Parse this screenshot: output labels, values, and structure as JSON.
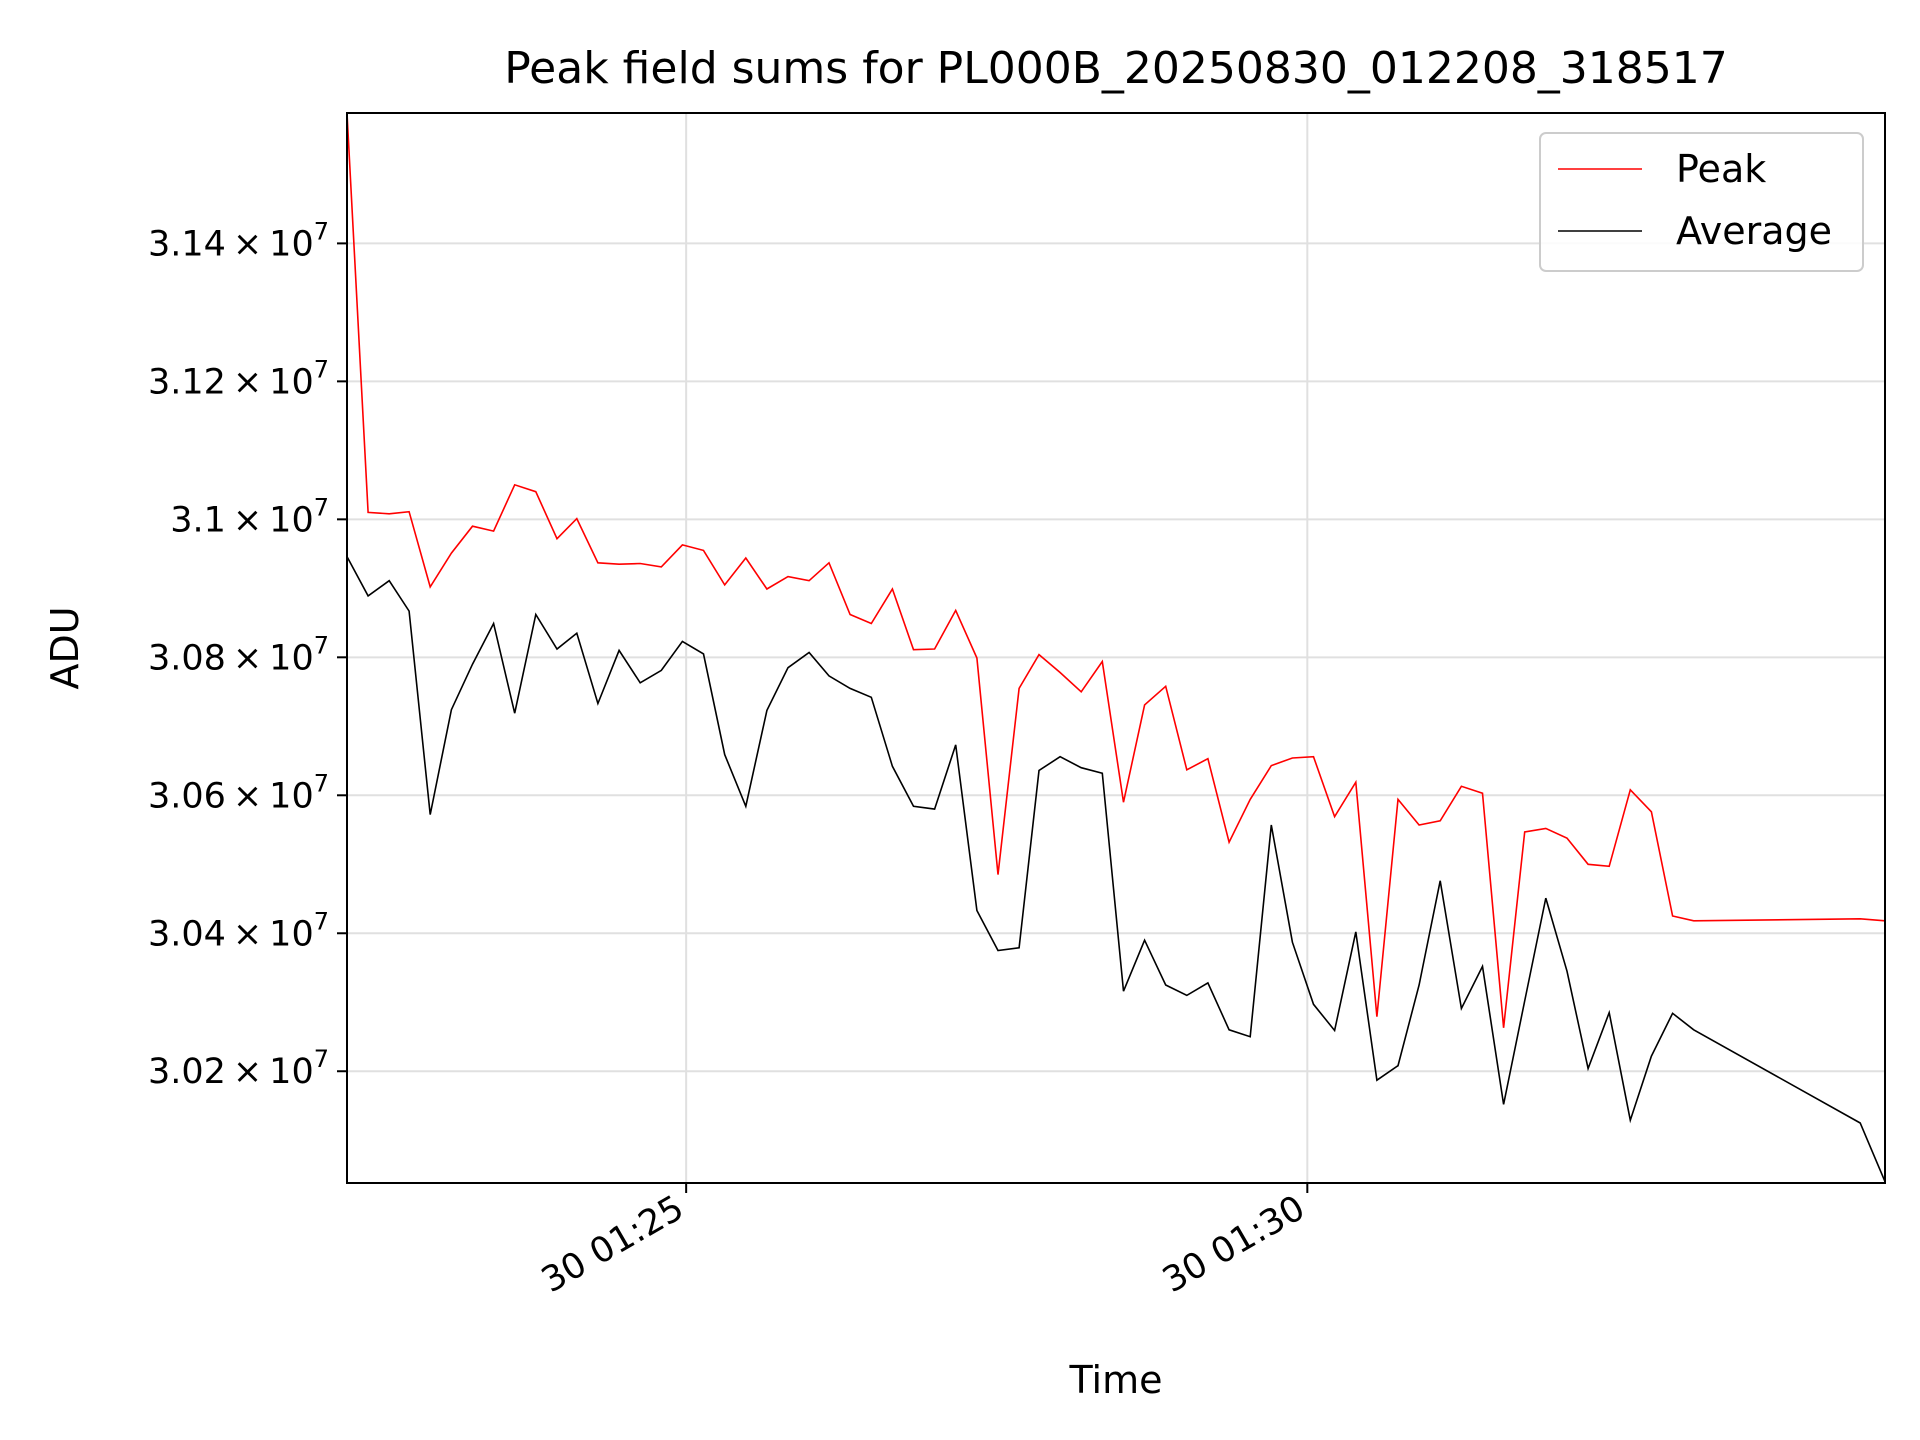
{
  "chart_data": {
    "type": "line",
    "title": "Peak field sums for PL000B_20250830_012208_318517",
    "xlabel": "Time",
    "ylabel": "ADU",
    "x_units": "minutes after 01:20",
    "xlim": [
      2.27,
      14.65
    ],
    "ylim": [
      30038000,
      31589000
    ],
    "x_ticks": [
      {
        "value": 5.0,
        "label": "30 01:25"
      },
      {
        "value": 10.0,
        "label": "30 01:30"
      }
    ],
    "y_ticks": [
      {
        "value": 30200000,
        "mantissa": "3.02",
        "exponent": "7"
      },
      {
        "value": 30400000,
        "mantissa": "3.04",
        "exponent": "7"
      },
      {
        "value": 30600000,
        "mantissa": "3.06",
        "exponent": "7"
      },
      {
        "value": 30800000,
        "mantissa": "3.08",
        "exponent": "7"
      },
      {
        "value": 31000000,
        "mantissa": "3.1",
        "exponent": "7"
      },
      {
        "value": 31200000,
        "mantissa": "3.12",
        "exponent": "7"
      },
      {
        "value": 31400000,
        "mantissa": "3.14",
        "exponent": "7"
      }
    ],
    "grid": true,
    "legend_position": "top-right",
    "x": [
      2.27,
      2.44,
      2.61,
      2.77,
      2.94,
      3.11,
      3.28,
      3.45,
      3.62,
      3.79,
      3.96,
      4.12,
      4.29,
      4.46,
      4.63,
      4.8,
      4.97,
      5.14,
      5.31,
      5.48,
      5.65,
      5.82,
      5.99,
      6.15,
      6.32,
      6.49,
      6.66,
      6.83,
      7.0,
      7.17,
      7.34,
      7.51,
      7.68,
      7.84,
      8.01,
      8.18,
      8.35,
      8.52,
      8.69,
      8.86,
      9.03,
      9.2,
      9.37,
      9.54,
      9.71,
      9.88,
      10.05,
      10.22,
      10.39,
      10.56,
      10.73,
      10.9,
      11.07,
      11.24,
      11.41,
      11.58,
      11.75,
      11.92,
      12.09,
      12.26,
      12.43,
      12.6,
      12.77,
      12.94,
      13.11,
      14.45,
      14.65
    ],
    "series": [
      {
        "name": "Peak",
        "color": "#ff0000",
        "values": [
          31589000,
          31010000,
          31008000,
          31011000,
          30902000,
          30951000,
          30990000,
          30983000,
          31050000,
          31040000,
          30972000,
          31001000,
          30937000,
          30935000,
          30936000,
          30931000,
          30963000,
          30955000,
          30905000,
          30944000,
          30899000,
          30917000,
          30911000,
          30937000,
          30862000,
          30849000,
          30899000,
          30811000,
          30812000,
          30868000,
          30799000,
          30485000,
          30755000,
          30804000,
          30778000,
          30750000,
          30794000,
          30590000,
          30731000,
          30758000,
          30637000,
          30653000,
          30532000,
          30594000,
          30643000,
          30654000,
          30656000,
          30569000,
          30619000,
          30279000,
          30594000,
          30557000,
          30563000,
          30613000,
          30603000,
          30263000,
          30547000,
          30552000,
          30538000,
          30500000,
          30497000,
          30608000,
          30576000,
          30425000,
          30418000,
          30421000,
          30418000
        ]
      },
      {
        "name": "Average",
        "color": "#000000",
        "values": [
          30946000,
          30889000,
          30911000,
          30867000,
          30572000,
          30724000,
          30790000,
          30849000,
          30719000,
          30862000,
          30812000,
          30835000,
          30733000,
          30810000,
          30763000,
          30781000,
          30823000,
          30805000,
          30659000,
          30584000,
          30723000,
          30785000,
          30807000,
          30773000,
          30755000,
          30742000,
          30642000,
          30584000,
          30580000,
          30673000,
          30433000,
          30375000,
          30379000,
          30636000,
          30656000,
          30640000,
          30632000,
          30316000,
          30390000,
          30325000,
          30310000,
          30328000,
          30260000,
          30250000,
          30557000,
          30387000,
          30297000,
          30259000,
          30402000,
          30187000,
          30208000,
          30325000,
          30476000,
          30291000,
          30352000,
          30152000,
          30302000,
          30451000,
          30345000,
          30204000,
          30285000,
          30129000,
          30222000,
          30284000,
          30260000,
          30125000,
          30040000
        ]
      }
    ]
  }
}
